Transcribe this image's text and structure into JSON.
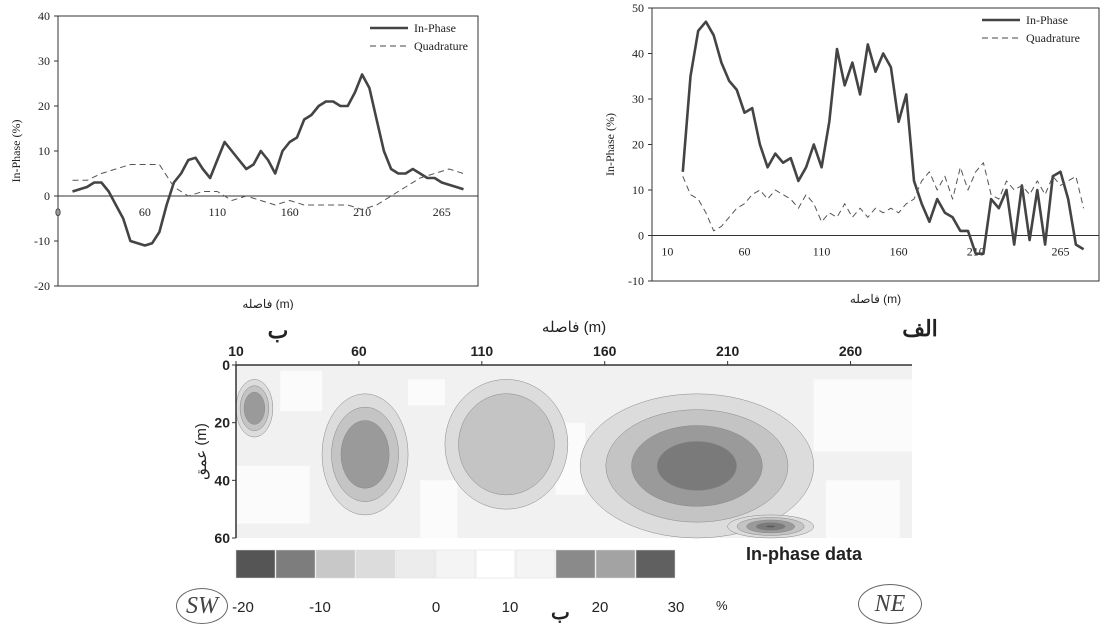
{
  "chart_data": [
    {
      "type": "line",
      "title": "",
      "xlabel": "فاصله (m)",
      "ylabel": "In-Phase (%)",
      "xlim": [
        0,
        290
      ],
      "ylim": [
        -20,
        40
      ],
      "x_ticks": [
        "0",
        "60",
        "110",
        "160",
        "210",
        "265"
      ],
      "y_ticks": [
        "-20",
        "-10",
        "0",
        "10",
        "20",
        "30",
        "40"
      ],
      "legend_position": "top-right",
      "series": [
        {
          "name": "In-Phase",
          "style": "solid",
          "x": [
            10,
            15,
            20,
            25,
            30,
            35,
            40,
            45,
            50,
            55,
            60,
            65,
            70,
            75,
            80,
            85,
            90,
            95,
            100,
            105,
            110,
            115,
            120,
            125,
            130,
            135,
            140,
            145,
            150,
            155,
            160,
            165,
            170,
            175,
            180,
            185,
            190,
            195,
            200,
            205,
            210,
            215,
            220,
            225,
            230,
            235,
            240,
            245,
            250,
            255,
            260,
            265,
            270,
            275,
            280
          ],
          "y": [
            1,
            1.5,
            2,
            3,
            3,
            1,
            -2,
            -5,
            -10,
            -10.5,
            -11,
            -10.5,
            -8,
            -2,
            3,
            5,
            8,
            8.5,
            6,
            4,
            8,
            12,
            10,
            8,
            6,
            7,
            10,
            8,
            5,
            10,
            12,
            13,
            17,
            18,
            20,
            21,
            21,
            20,
            20,
            23,
            27,
            24,
            17,
            10,
            6,
            5,
            5,
            6,
            5,
            4,
            4,
            3,
            2.5,
            2,
            1.5
          ]
        },
        {
          "name": "Quadrature",
          "style": "dashed",
          "x": [
            10,
            20,
            30,
            40,
            50,
            60,
            70,
            80,
            90,
            100,
            110,
            120,
            130,
            140,
            150,
            160,
            170,
            180,
            190,
            200,
            210,
            220,
            230,
            240,
            250,
            260,
            270,
            280
          ],
          "y": [
            3.5,
            3.5,
            5,
            6,
            7,
            7,
            7,
            2,
            0,
            1,
            1,
            -1,
            0,
            -1,
            -2,
            -1,
            -2,
            -2,
            -2,
            -2,
            -3,
            -2,
            0,
            2,
            4,
            5,
            6,
            5
          ]
        }
      ]
    },
    {
      "type": "line",
      "title": "",
      "xlabel": "فاصله (m)",
      "ylabel": "In-Phase (%)",
      "xlim": [
        0,
        290
      ],
      "ylim": [
        -10,
        50
      ],
      "x_ticks": [
        "10",
        "60",
        "110",
        "160",
        "210",
        "265"
      ],
      "y_ticks": [
        "-10",
        "0",
        "10",
        "20",
        "30",
        "40",
        "50"
      ],
      "legend_position": "top-right",
      "series": [
        {
          "name": "In-Phase",
          "style": "solid",
          "x": [
            20,
            25,
            30,
            35,
            40,
            45,
            50,
            55,
            60,
            65,
            70,
            75,
            80,
            85,
            90,
            95,
            100,
            105,
            110,
            115,
            120,
            125,
            130,
            135,
            140,
            145,
            150,
            155,
            160,
            165,
            170,
            175,
            180,
            185,
            190,
            195,
            200,
            205,
            210,
            215,
            220,
            225,
            230,
            235,
            240,
            245,
            250,
            255,
            260,
            265,
            270,
            275,
            280
          ],
          "y": [
            14,
            35,
            45,
            47,
            44,
            38,
            34,
            32,
            27,
            28,
            20,
            15,
            18,
            16,
            17,
            12,
            15,
            20,
            15,
            25,
            41,
            33,
            38,
            31,
            42,
            36,
            40,
            37,
            25,
            31,
            12,
            7,
            3,
            8,
            5,
            4,
            1,
            1,
            -4,
            -4,
            8,
            6,
            10,
            -2,
            11,
            -1,
            10,
            -2,
            13,
            14,
            8,
            -2,
            -3
          ]
        },
        {
          "name": "Quadrature",
          "style": "dashed",
          "x": [
            20,
            25,
            30,
            35,
            40,
            45,
            50,
            55,
            60,
            65,
            70,
            75,
            80,
            85,
            90,
            95,
            100,
            105,
            110,
            115,
            120,
            125,
            130,
            135,
            140,
            145,
            150,
            155,
            160,
            165,
            170,
            175,
            180,
            185,
            190,
            195,
            200,
            205,
            210,
            215,
            220,
            225,
            230,
            235,
            240,
            245,
            250,
            255,
            260,
            265,
            270,
            275,
            280
          ],
          "y": [
            13,
            9,
            8,
            5,
            1,
            2,
            4,
            6,
            7,
            9,
            10,
            8,
            10,
            9,
            8,
            6,
            9,
            7,
            3,
            5,
            4,
            7,
            4,
            6,
            4,
            6,
            5,
            6,
            5,
            7,
            8,
            12,
            14,
            10,
            13,
            8,
            15,
            10,
            14,
            16,
            9,
            8,
            12,
            10,
            11,
            9,
            12,
            9,
            13,
            11,
            12,
            13,
            6
          ]
        }
      ]
    },
    {
      "type": "heatmap",
      "title": "",
      "xlabel": "فاصله (m)",
      "ylabel": "عمق (m)",
      "x_ticks": [
        "10",
        "60",
        "110",
        "160",
        "210",
        "260"
      ],
      "y_ticks": [
        "0",
        "20",
        "40",
        "60"
      ],
      "xlim": [
        10,
        285
      ],
      "ylim": [
        0,
        60
      ],
      "end_labels": {
        "left": "ب",
        "right": "الف"
      },
      "colorbar": {
        "title": "In-phase data",
        "tick_labels": [
          "-20",
          "-10",
          "0",
          "10",
          "20",
          "30"
        ],
        "unit": "%",
        "colors": [
          "#555555",
          "#7d7d7d",
          "#c8c8c8",
          "#dcdcdc",
          "#ececec",
          "#f4f4f4",
          "#ffffff",
          "#f4f4f4",
          "#8a8a8a",
          "#a3a3a3",
          "#606060"
        ]
      },
      "anomalies": [
        {
          "x_range": [
            10,
            25
          ],
          "depth_range": [
            5,
            25
          ],
          "min_value": -20
        },
        {
          "x_range": [
            45,
            80
          ],
          "depth_range": [
            10,
            52
          ],
          "min_value": -15
        },
        {
          "x_range": [
            95,
            145
          ],
          "depth_range": [
            5,
            50
          ],
          "min_value": -12
        },
        {
          "x_range": [
            150,
            245
          ],
          "depth_range": [
            10,
            60
          ],
          "min_value": -25
        },
        {
          "x_range": [
            210,
            245
          ],
          "depth_range": [
            52,
            60
          ],
          "min_value": -30
        }
      ]
    }
  ],
  "compass": {
    "left": "SW",
    "right": "NE"
  },
  "bottom_marker": "ب"
}
